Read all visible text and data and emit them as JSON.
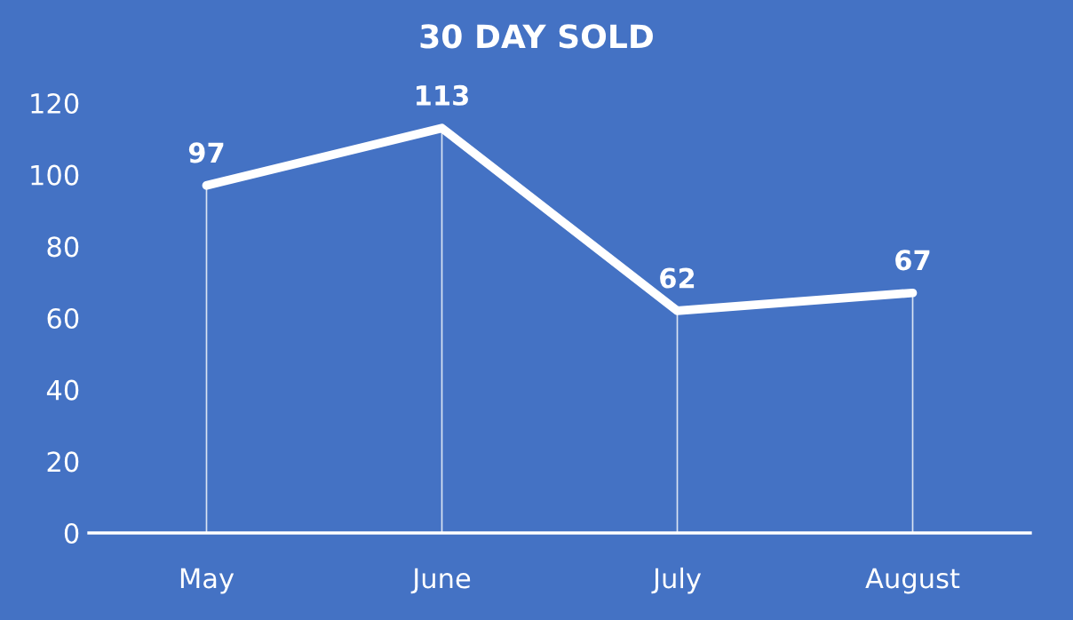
{
  "chart_data": {
    "type": "line",
    "title": "30 DAY SOLD",
    "categories": [
      "May",
      "June",
      "July",
      "August"
    ],
    "series": [
      {
        "color": "#ffffff",
        "values": [
          97,
          113,
          62,
          67
        ]
      }
    ],
    "ylim": [
      0,
      120
    ],
    "yticks": [
      0,
      20,
      40,
      60,
      80,
      100,
      120
    ],
    "data_labels": true,
    "grid": "x",
    "marker": "none",
    "line_style": "solid"
  }
}
